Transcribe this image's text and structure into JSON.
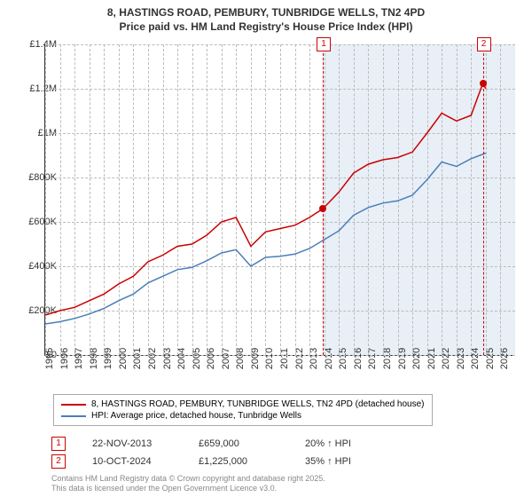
{
  "title_line1": "8, HASTINGS ROAD, PEMBURY, TUNBRIDGE WELLS, TN2 4PD",
  "title_line2": "Price paid vs. HM Land Registry's House Price Index (HPI)",
  "chart": {
    "type": "line",
    "background_color": "#ffffff",
    "shaded_bg_color": "#e8eff7",
    "grid_color": "#bbbbbb",
    "axis_color": "#333333",
    "xlim": [
      1995,
      2027
    ],
    "xticks": [
      1995,
      1996,
      1997,
      1998,
      1999,
      2000,
      2001,
      2002,
      2003,
      2004,
      2005,
      2006,
      2007,
      2008,
      2009,
      2010,
      2011,
      2012,
      2013,
      2014,
      2015,
      2016,
      2017,
      2018,
      2019,
      2020,
      2021,
      2022,
      2023,
      2024,
      2025,
      2026
    ],
    "ylim": [
      0,
      1400000
    ],
    "yticks": [
      0,
      200000,
      400000,
      600000,
      800000,
      1000000,
      1200000,
      1400000
    ],
    "ytick_labels": [
      "£0",
      "£200K",
      "£400K",
      "£600K",
      "£800K",
      "£1M",
      "£1.2M",
      "£1.4M"
    ],
    "tick_fontsize": 11,
    "series": [
      {
        "name": "property_price",
        "label": "8, HASTINGS ROAD, PEMBURY, TUNBRIDGE WELLS, TN2 4PD (detached house)",
        "color": "#cc0000",
        "line_width": 1.5,
        "x": [
          1995,
          1996,
          1997,
          1998,
          1999,
          2000,
          2001,
          2002,
          2003,
          2004,
          2005,
          2006,
          2007,
          2008,
          2009,
          2010,
          2011,
          2012,
          2013,
          2013.9,
          2014.5,
          2015,
          2016,
          2017,
          2018,
          2019,
          2020,
          2021,
          2022,
          2023,
          2024,
          2024.8,
          2025
        ],
        "y": [
          180000,
          200000,
          215000,
          245000,
          275000,
          320000,
          355000,
          420000,
          450000,
          490000,
          500000,
          540000,
          600000,
          620000,
          490000,
          555000,
          570000,
          585000,
          620000,
          659000,
          700000,
          735000,
          820000,
          860000,
          880000,
          890000,
          915000,
          1000000,
          1090000,
          1055000,
          1080000,
          1225000,
          1200000
        ]
      },
      {
        "name": "hpi",
        "label": "HPI: Average price, detached house, Tunbridge Wells",
        "color": "#4a7ebb",
        "line_width": 1.5,
        "x": [
          1995,
          1996,
          1997,
          1998,
          1999,
          2000,
          2001,
          2002,
          2003,
          2004,
          2005,
          2006,
          2007,
          2008,
          2009,
          2010,
          2011,
          2012,
          2013,
          2014,
          2015,
          2016,
          2017,
          2018,
          2019,
          2020,
          2021,
          2022,
          2023,
          2024,
          2025
        ],
        "y": [
          140000,
          150000,
          165000,
          185000,
          210000,
          245000,
          275000,
          325000,
          355000,
          385000,
          395000,
          425000,
          460000,
          475000,
          400000,
          440000,
          445000,
          455000,
          480000,
          520000,
          560000,
          630000,
          665000,
          685000,
          695000,
          720000,
          790000,
          870000,
          850000,
          885000,
          910000
        ]
      }
    ],
    "markers": [
      {
        "id": "1",
        "x": 2013.9,
        "y": 659000,
        "color": "#cc0000"
      },
      {
        "id": "2",
        "x": 2024.8,
        "y": 1225000,
        "color": "#cc0000"
      }
    ],
    "shaded_from_x": 2013.9
  },
  "data_rows": [
    {
      "id": "1",
      "date": "22-NOV-2013",
      "price": "£659,000",
      "pct": "20% ↑ HPI"
    },
    {
      "id": "2",
      "date": "10-OCT-2024",
      "price": "£1,225,000",
      "pct": "35% ↑ HPI"
    }
  ],
  "footer_line1": "Contains HM Land Registry data © Crown copyright and database right 2025.",
  "footer_line2": "This data is licensed under the Open Government Licence v3.0."
}
